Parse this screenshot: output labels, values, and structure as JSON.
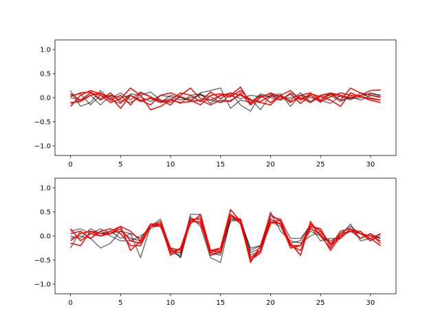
{
  "chart_data": [
    {
      "type": "line",
      "xlim": [
        -1.55,
        32.55
      ],
      "ylim": [
        -1.2,
        1.2
      ],
      "xticks": [
        0,
        5,
        10,
        15,
        20,
        25,
        30
      ],
      "yticks": [
        -1.0,
        -0.5,
        0.0,
        0.5,
        1.0
      ],
      "xtick_labels": [
        "0",
        "5",
        "10",
        "15",
        "20",
        "25",
        "30"
      ],
      "ytick_labels": [
        "−1.0",
        "−0.5",
        "0.0",
        "0.5",
        "1.0"
      ],
      "grid": false,
      "colors": {
        "black": "#000000",
        "red": "#ff0000"
      },
      "series": [
        {
          "color": "black",
          "opacity": 0.55,
          "values": [
            0.15,
            -0.18,
            -0.1,
            0.15,
            -0.05,
            -0.12,
            0.08,
            0.05,
            0.12,
            -0.05,
            -0.1,
            0.02,
            -0.08,
            0.1,
            0.15,
            0.2,
            -0.22,
            -0.05,
            -0.1,
            0.08,
            0.02,
            0.05,
            -0.05,
            0.1,
            -0.08,
            0.05,
            0.1,
            -0.05,
            0.0,
            0.05,
            0.08,
            0.05
          ]
        },
        {
          "color": "black",
          "opacity": 0.55,
          "values": [
            0.05,
            0.08,
            -0.15,
            0.05,
            -0.02,
            0.1,
            -0.05,
            0.12,
            0.02,
            -0.08,
            -0.02,
            -0.12,
            0.05,
            0.08,
            -0.12,
            0.05,
            0.1,
            -0.15,
            -0.28,
            0.05,
            0.0,
            -0.05,
            0.1,
            -0.02,
            0.05,
            -0.1,
            0.08,
            0.02,
            -0.02,
            0.0,
            0.1,
            0.05
          ]
        },
        {
          "color": "black",
          "opacity": 0.55,
          "values": [
            -0.12,
            -0.05,
            0.05,
            -0.15,
            0.05,
            -0.05,
            -0.1,
            0.02,
            -0.08,
            0.05,
            0.02,
            -0.05,
            0.0,
            0.05,
            0.02,
            -0.1,
            -0.05,
            0.05,
            -0.02,
            -0.25,
            0.05,
            0.08,
            -0.18,
            0.05,
            0.0,
            -0.05,
            -0.12,
            0.05,
            -0.05,
            0.1,
            0.0,
            -0.05
          ]
        },
        {
          "color": "black",
          "opacity": 0.55,
          "values": [
            0.0,
            -0.05,
            0.1,
            -0.02,
            0.05,
            0.0,
            0.05,
            -0.05,
            -0.02,
            -0.1,
            0.05,
            0.0,
            -0.05,
            0.08,
            -0.05,
            -0.1,
            0.05,
            -0.02,
            0.05,
            0.02,
            0.08,
            -0.02,
            0.0,
            0.05,
            -0.1,
            0.02,
            0.05,
            -0.08,
            0.02,
            -0.05,
            0.05,
            0.0
          ]
        },
        {
          "color": "red",
          "opacity": 1,
          "values": [
            -0.18,
            0.05,
            0.15,
            0.08,
            0.02,
            -0.22,
            0.05,
            -0.05,
            -0.15,
            0.05,
            0.1,
            0.02,
            -0.05,
            -0.15,
            0.05,
            0.08,
            0.05,
            0.22,
            -0.12,
            0.05,
            -0.1,
            0.05,
            0.15,
            -0.05,
            0.08,
            0.02,
            -0.05,
            -0.18,
            0.1,
            0.02,
            -0.05,
            -0.1
          ]
        },
        {
          "color": "red",
          "opacity": 1,
          "values": [
            0.08,
            -0.05,
            0.1,
            0.05,
            -0.1,
            -0.02,
            0.2,
            0.05,
            -0.25,
            -0.18,
            -0.05,
            0.1,
            0.05,
            -0.08,
            0.12,
            -0.02,
            0.1,
            0.05,
            -0.05,
            -0.1,
            -0.15,
            0.05,
            -0.1,
            0.05,
            0.1,
            -0.05,
            0.1,
            0.05,
            0.0,
            0.05,
            0.15,
            0.16
          ]
        },
        {
          "color": "red",
          "opacity": 1,
          "values": [
            0.02,
            0.1,
            0.12,
            -0.05,
            0.1,
            -0.1,
            0.05,
            -0.08,
            0.0,
            -0.05,
            -0.15,
            0.05,
            0.2,
            -0.02,
            -0.05,
            0.05,
            0.02,
            0.15,
            -0.05,
            -0.08,
            0.05,
            -0.05,
            0.08,
            -0.12,
            0.05,
            -0.08,
            0.02,
            0.1,
            0.05,
            0.02,
            -0.02,
            -0.05
          ]
        },
        {
          "color": "red",
          "opacity": 1,
          "values": [
            -0.1,
            -0.08,
            0.05,
            0.1,
            -0.05,
            0.05,
            -0.15,
            0.1,
            0.02,
            -0.1,
            -0.05,
            -0.1,
            -0.08,
            -0.05,
            -0.15,
            -0.05,
            -0.08,
            0.1,
            -0.15,
            0.0,
            0.1,
            0.02,
            -0.08,
            0.0,
            -0.1,
            0.05,
            0.08,
            -0.05,
            0.2,
            0.1,
            0.05,
            0.02
          ]
        }
      ]
    },
    {
      "type": "line",
      "xlim": [
        -1.55,
        32.55
      ],
      "ylim": [
        -1.2,
        1.2
      ],
      "xticks": [
        0,
        5,
        10,
        15,
        20,
        25,
        30
      ],
      "yticks": [
        -1.0,
        -0.5,
        0.0,
        0.5,
        1.0
      ],
      "xtick_labels": [
        "0",
        "5",
        "10",
        "15",
        "20",
        "25",
        "30"
      ],
      "ytick_labels": [
        "−1.0",
        "−0.5",
        "0.0",
        "0.5",
        "1.0"
      ],
      "grid": false,
      "colors": {
        "black": "#000000",
        "red": "#ff0000"
      },
      "series": [
        {
          "color": "black",
          "opacity": 0.55,
          "values": [
            -0.25,
            0.1,
            -0.05,
            -0.25,
            -0.15,
            0.1,
            0.05,
            -0.45,
            0.2,
            0.35,
            -0.25,
            -0.45,
            0.4,
            0.2,
            -0.45,
            -0.55,
            0.35,
            0.35,
            -0.35,
            -0.25,
            0.5,
            0.1,
            -0.1,
            -0.15,
            0.0,
            0.1,
            -0.2,
            0.0,
            0.25,
            -0.1,
            -0.05,
            0.05
          ]
        },
        {
          "color": "black",
          "opacity": 0.55,
          "values": [
            0.1,
            0.15,
            0.05,
            0.15,
            0.05,
            0.1,
            -0.05,
            -0.1,
            0.25,
            0.25,
            -0.3,
            -0.35,
            0.45,
            0.45,
            -0.4,
            -0.35,
            0.4,
            0.3,
            -0.4,
            -0.3,
            0.4,
            0.35,
            -0.05,
            -0.05,
            0.2,
            -0.1,
            -0.05,
            -0.05,
            0.15,
            0.05,
            0.0,
            -0.05
          ]
        },
        {
          "color": "black",
          "opacity": 0.55,
          "values": [
            0.0,
            -0.05,
            0.15,
            0.05,
            0.1,
            -0.05,
            0.05,
            -0.05,
            0.2,
            0.2,
            -0.35,
            -0.4,
            0.35,
            0.35,
            -0.3,
            -0.3,
            0.3,
            0.35,
            -0.3,
            -0.2,
            0.35,
            0.25,
            -0.15,
            -0.1,
            0.25,
            0.0,
            -0.15,
            0.05,
            0.2,
            0.05,
            -0.1,
            0.0
          ]
        },
        {
          "color": "black",
          "opacity": 0.55,
          "values": [
            -0.05,
            0.0,
            -0.05,
            0.1,
            0.0,
            -0.1,
            -0.1,
            0.0,
            0.15,
            0.25,
            -0.25,
            -0.45,
            0.3,
            0.4,
            -0.35,
            -0.4,
            0.35,
            0.3,
            -0.25,
            -0.2,
            0.3,
            0.2,
            -0.2,
            -0.2,
            0.1,
            0.0,
            -0.1,
            0.0,
            0.1,
            -0.05,
            0.05,
            -0.05
          ]
        },
        {
          "color": "red",
          "opacity": 1,
          "values": [
            0.15,
            -0.1,
            0.05,
            0.0,
            0.1,
            0.2,
            -0.3,
            -0.1,
            0.25,
            0.25,
            -0.4,
            -0.25,
            0.25,
            0.45,
            -0.3,
            -0.25,
            0.55,
            0.3,
            -0.55,
            -0.2,
            0.45,
            0.3,
            -0.15,
            -0.4,
            0.3,
            0.0,
            -0.25,
            0.05,
            0.1,
            0.05,
            -0.05,
            -0.2
          ]
        },
        {
          "color": "red",
          "opacity": 1,
          "values": [
            -0.1,
            0.05,
            0.1,
            0.05,
            0.05,
            0.2,
            0.1,
            -0.1,
            0.25,
            0.2,
            -0.25,
            -0.3,
            0.35,
            0.35,
            -0.35,
            -0.25,
            0.45,
            0.25,
            -0.5,
            -0.3,
            0.25,
            0.35,
            -0.2,
            -0.2,
            0.25,
            0.1,
            -0.15,
            -0.05,
            0.15,
            -0.05,
            0.05,
            -0.15
          ]
        },
        {
          "color": "red",
          "opacity": 1,
          "values": [
            0.05,
            0.1,
            -0.05,
            0.1,
            0.15,
            0.05,
            -0.2,
            -0.2,
            0.2,
            0.3,
            -0.3,
            -0.35,
            0.3,
            0.3,
            -0.4,
            -0.3,
            0.4,
            0.35,
            -0.45,
            -0.3,
            0.35,
            0.25,
            -0.2,
            -0.3,
            0.2,
            0.15,
            -0.2,
            0.1,
            0.15,
            0.05,
            0.0,
            -0.1
          ]
        },
        {
          "color": "red",
          "opacity": 1,
          "values": [
            -0.15,
            -0.2,
            0.1,
            0.0,
            0.05,
            0.15,
            -0.1,
            -0.15,
            0.2,
            0.25,
            -0.35,
            -0.25,
            0.35,
            0.25,
            -0.3,
            -0.35,
            0.45,
            0.3,
            -0.5,
            -0.35,
            0.3,
            0.25,
            -0.25,
            -0.2,
            0.15,
            0.05,
            -0.3,
            0.0,
            0.1,
            0.1,
            -0.1,
            0.05
          ]
        }
      ]
    }
  ]
}
